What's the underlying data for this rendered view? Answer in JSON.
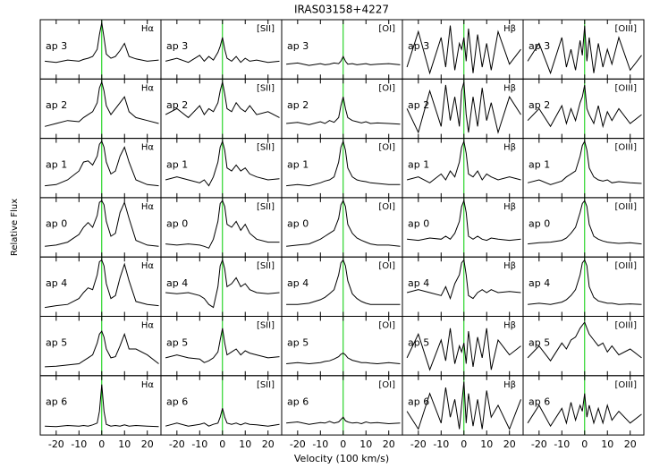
{
  "chart_data": {
    "type": "line",
    "title": "IRAS03158+4227",
    "x_label": "Velocity (100 km/s)",
    "y_label": "Relative Flux",
    "xlim": [
      -27,
      26
    ],
    "xticks": [
      -20,
      -10,
      0,
      10,
      20
    ],
    "ylim": [
      0,
      1
    ],
    "color": "#000000",
    "reference_line": {
      "x": 0,
      "color": "#00cc00"
    },
    "x": [
      -25,
      -20,
      -15,
      -10,
      -8,
      -6,
      -4,
      -2,
      -1,
      0,
      1,
      2,
      4,
      6,
      8,
      10,
      12,
      15,
      20,
      25
    ],
    "rows": [
      "ap 3",
      "ap 2",
      "ap 1",
      "ap 0",
      "ap 4",
      "ap 5",
      "ap 6"
    ],
    "columns": [
      {
        "line": "Hα",
        "series": [
          [
            0.3,
            0.28,
            0.32,
            0.3,
            0.33,
            0.35,
            0.38,
            0.5,
            0.75,
            0.95,
            0.7,
            0.42,
            0.35,
            0.38,
            0.48,
            0.6,
            0.38,
            0.34,
            0.3,
            0.32
          ],
          [
            0.2,
            0.25,
            0.3,
            0.28,
            0.35,
            0.4,
            0.45,
            0.6,
            0.85,
            0.95,
            0.8,
            0.55,
            0.4,
            0.5,
            0.6,
            0.7,
            0.45,
            0.35,
            0.3,
            0.25
          ],
          [
            0.2,
            0.22,
            0.3,
            0.45,
            0.6,
            0.62,
            0.55,
            0.7,
            0.9,
            0.95,
            0.85,
            0.6,
            0.4,
            0.45,
            0.7,
            0.85,
            0.6,
            0.3,
            0.22,
            0.2
          ],
          [
            0.18,
            0.2,
            0.25,
            0.38,
            0.5,
            0.58,
            0.5,
            0.7,
            0.92,
            0.95,
            0.88,
            0.6,
            0.35,
            0.4,
            0.75,
            0.92,
            0.65,
            0.28,
            0.2,
            0.18
          ],
          [
            0.15,
            0.18,
            0.2,
            0.3,
            0.4,
            0.48,
            0.45,
            0.7,
            0.92,
            0.95,
            0.85,
            0.55,
            0.3,
            0.35,
            0.65,
            0.88,
            0.6,
            0.25,
            0.2,
            0.18
          ],
          [
            0.15,
            0.16,
            0.18,
            0.2,
            0.25,
            0.3,
            0.35,
            0.55,
            0.7,
            0.75,
            0.65,
            0.45,
            0.3,
            0.32,
            0.5,
            0.7,
            0.45,
            0.45,
            0.35,
            0.2
          ],
          [
            0.15,
            0.14,
            0.16,
            0.15,
            0.16,
            0.15,
            0.17,
            0.2,
            0.4,
            0.85,
            0.4,
            0.18,
            0.15,
            0.16,
            0.15,
            0.17,
            0.15,
            0.16,
            0.15,
            0.14
          ]
        ]
      },
      {
        "line": "[SII]",
        "series": [
          [
            0.3,
            0.35,
            0.28,
            0.4,
            0.3,
            0.38,
            0.32,
            0.45,
            0.55,
            0.7,
            0.5,
            0.35,
            0.3,
            0.38,
            0.28,
            0.35,
            0.3,
            0.32,
            0.28,
            0.3
          ],
          [
            0.4,
            0.5,
            0.35,
            0.55,
            0.4,
            0.5,
            0.45,
            0.6,
            0.8,
            0.95,
            0.75,
            0.5,
            0.45,
            0.6,
            0.5,
            0.45,
            0.55,
            0.4,
            0.45,
            0.35
          ],
          [
            0.3,
            0.35,
            0.3,
            0.25,
            0.3,
            0.2,
            0.35,
            0.6,
            0.85,
            0.95,
            0.8,
            0.5,
            0.45,
            0.55,
            0.45,
            0.5,
            0.4,
            0.35,
            0.3,
            0.32
          ],
          [
            0.22,
            0.2,
            0.22,
            0.2,
            0.18,
            0.15,
            0.3,
            0.6,
            0.9,
            0.95,
            0.85,
            0.55,
            0.5,
            0.6,
            0.45,
            0.55,
            0.4,
            0.3,
            0.25,
            0.25
          ],
          [
            0.4,
            0.38,
            0.4,
            0.35,
            0.3,
            0.2,
            0.15,
            0.5,
            0.85,
            0.95,
            0.8,
            0.5,
            0.55,
            0.65,
            0.5,
            0.55,
            0.45,
            0.4,
            0.38,
            0.4
          ],
          [
            0.3,
            0.35,
            0.3,
            0.28,
            0.22,
            0.25,
            0.3,
            0.4,
            0.6,
            0.8,
            0.55,
            0.35,
            0.4,
            0.45,
            0.35,
            0.42,
            0.38,
            0.35,
            0.3,
            0.32
          ],
          [
            0.15,
            0.2,
            0.15,
            0.18,
            0.2,
            0.15,
            0.18,
            0.2,
            0.3,
            0.45,
            0.3,
            0.2,
            0.18,
            0.2,
            0.17,
            0.2,
            0.18,
            0.17,
            0.15,
            0.18
          ]
        ]
      },
      {
        "line": "[OI]",
        "series": [
          [
            0.25,
            0.27,
            0.23,
            0.26,
            0.24,
            0.25,
            0.27,
            0.26,
            0.3,
            0.38,
            0.3,
            0.25,
            0.26,
            0.24,
            0.25,
            0.26,
            0.24,
            0.25,
            0.26,
            0.24
          ],
          [
            0.25,
            0.27,
            0.23,
            0.28,
            0.25,
            0.3,
            0.27,
            0.35,
            0.55,
            0.7,
            0.5,
            0.35,
            0.3,
            0.28,
            0.26,
            0.28,
            0.25,
            0.26,
            0.25,
            0.24
          ],
          [
            0.2,
            0.22,
            0.2,
            0.25,
            0.28,
            0.3,
            0.35,
            0.6,
            0.85,
            0.95,
            0.8,
            0.5,
            0.35,
            0.3,
            0.28,
            0.27,
            0.25,
            0.24,
            0.22,
            0.22
          ],
          [
            0.18,
            0.2,
            0.22,
            0.3,
            0.35,
            0.4,
            0.45,
            0.65,
            0.88,
            0.95,
            0.85,
            0.55,
            0.4,
            0.32,
            0.28,
            0.25,
            0.22,
            0.2,
            0.2,
            0.18
          ],
          [
            0.2,
            0.2,
            0.22,
            0.28,
            0.32,
            0.38,
            0.45,
            0.7,
            0.9,
            0.95,
            0.85,
            0.6,
            0.38,
            0.3,
            0.25,
            0.22,
            0.2,
            0.2,
            0.2,
            0.2
          ],
          [
            0.2,
            0.22,
            0.2,
            0.22,
            0.24,
            0.25,
            0.28,
            0.32,
            0.36,
            0.38,
            0.35,
            0.3,
            0.26,
            0.24,
            0.22,
            0.22,
            0.21,
            0.2,
            0.22,
            0.2
          ],
          [
            0.2,
            0.22,
            0.18,
            0.21,
            0.2,
            0.23,
            0.2,
            0.22,
            0.26,
            0.3,
            0.24,
            0.22,
            0.2,
            0.21,
            0.19,
            0.22,
            0.2,
            0.21,
            0.19,
            0.2
          ]
        ]
      },
      {
        "line": "Hβ",
        "series": [
          [
            0.2,
            0.8,
            0.1,
            0.7,
            0.2,
            0.9,
            0.15,
            0.6,
            0.5,
            0.7,
            0.3,
            0.85,
            0.1,
            0.75,
            0.2,
            0.6,
            0.15,
            0.8,
            0.25,
            0.5
          ],
          [
            0.5,
            0.1,
            0.8,
            0.2,
            0.9,
            0.3,
            0.7,
            0.2,
            0.8,
            0.95,
            0.4,
            0.1,
            0.7,
            0.2,
            0.85,
            0.3,
            0.6,
            0.1,
            0.7,
            0.4
          ],
          [
            0.3,
            0.35,
            0.25,
            0.4,
            0.3,
            0.45,
            0.35,
            0.6,
            0.85,
            0.95,
            0.75,
            0.4,
            0.35,
            0.45,
            0.3,
            0.4,
            0.35,
            0.3,
            0.35,
            0.3
          ],
          [
            0.3,
            0.28,
            0.32,
            0.3,
            0.35,
            0.3,
            0.4,
            0.6,
            0.85,
            0.95,
            0.75,
            0.35,
            0.3,
            0.35,
            0.3,
            0.28,
            0.32,
            0.3,
            0.28,
            0.3
          ],
          [
            0.4,
            0.45,
            0.4,
            0.35,
            0.5,
            0.3,
            0.55,
            0.7,
            0.9,
            0.95,
            0.7,
            0.35,
            0.3,
            0.4,
            0.45,
            0.4,
            0.45,
            0.4,
            0.42,
            0.4
          ],
          [
            0.3,
            0.7,
            0.1,
            0.6,
            0.25,
            0.8,
            0.2,
            0.5,
            0.4,
            0.55,
            0.2,
            0.75,
            0.15,
            0.65,
            0.3,
            0.8,
            0.1,
            0.6,
            0.35,
            0.5
          ],
          [
            0.4,
            0.1,
            0.7,
            0.2,
            0.8,
            0.3,
            0.6,
            0.1,
            0.5,
            0.9,
            0.2,
            0.7,
            0.15,
            0.6,
            0.1,
            0.75,
            0.3,
            0.5,
            0.1,
            0.6
          ]
        ]
      },
      {
        "line": "[OIII]",
        "series": [
          [
            0.3,
            0.6,
            0.1,
            0.7,
            0.2,
            0.5,
            0.15,
            0.65,
            0.4,
            0.9,
            0.3,
            0.7,
            0.1,
            0.6,
            0.2,
            0.5,
            0.25,
            0.7,
            0.15,
            0.4
          ],
          [
            0.3,
            0.5,
            0.2,
            0.55,
            0.25,
            0.5,
            0.3,
            0.6,
            0.7,
            0.9,
            0.5,
            0.4,
            0.25,
            0.55,
            0.2,
            0.45,
            0.3,
            0.5,
            0.25,
            0.4
          ],
          [
            0.25,
            0.3,
            0.22,
            0.28,
            0.35,
            0.4,
            0.45,
            0.7,
            0.88,
            0.95,
            0.8,
            0.5,
            0.35,
            0.3,
            0.28,
            0.3,
            0.25,
            0.27,
            0.25,
            0.24
          ],
          [
            0.22,
            0.24,
            0.25,
            0.28,
            0.32,
            0.4,
            0.5,
            0.75,
            0.9,
            0.95,
            0.85,
            0.55,
            0.35,
            0.3,
            0.27,
            0.25,
            0.24,
            0.23,
            0.24,
            0.22
          ],
          [
            0.2,
            0.22,
            0.2,
            0.24,
            0.28,
            0.35,
            0.45,
            0.7,
            0.9,
            0.95,
            0.85,
            0.5,
            0.32,
            0.26,
            0.24,
            0.22,
            0.22,
            0.2,
            0.21,
            0.2
          ],
          [
            0.3,
            0.5,
            0.25,
            0.55,
            0.45,
            0.6,
            0.65,
            0.8,
            0.85,
            0.9,
            0.8,
            0.7,
            0.6,
            0.5,
            0.55,
            0.4,
            0.5,
            0.35,
            0.45,
            0.3
          ],
          [
            0.2,
            0.5,
            0.15,
            0.45,
            0.2,
            0.55,
            0.25,
            0.5,
            0.4,
            0.7,
            0.3,
            0.5,
            0.2,
            0.45,
            0.2,
            0.5,
            0.25,
            0.4,
            0.2,
            0.35
          ]
        ]
      }
    ]
  }
}
